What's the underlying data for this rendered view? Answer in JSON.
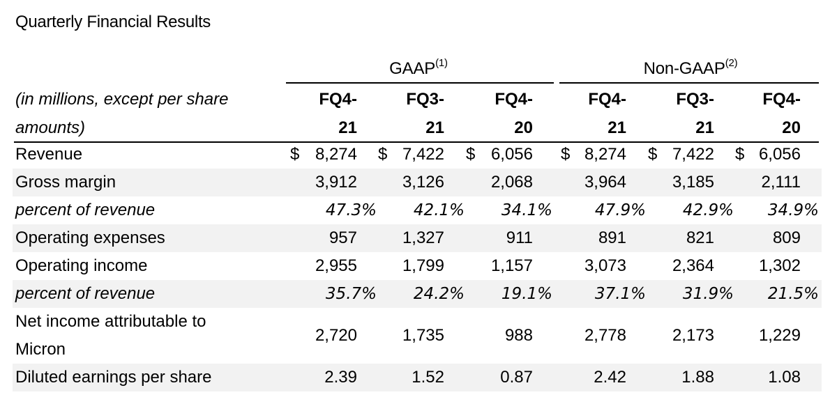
{
  "title": "Quarterly Financial Results",
  "groups": [
    {
      "name": "GAAP",
      "note": "(1)"
    },
    {
      "name": "Non-GAAP",
      "note": "(2)"
    }
  ],
  "header_label": [
    "(in millions, except per share",
    "amounts)"
  ],
  "columns": [
    {
      "l1": "FQ4-",
      "l2": "21"
    },
    {
      "l1": "FQ3-",
      "l2": "21"
    },
    {
      "l1": "FQ4-",
      "l2": "20"
    },
    {
      "l1": "FQ4-",
      "l2": "21"
    },
    {
      "l1": "FQ3-",
      "l2": "21"
    },
    {
      "l1": "FQ4-",
      "l2": "20"
    }
  ],
  "currency_symbol": "$",
  "rows": [
    {
      "label": "Revenue",
      "values": [
        "8,274",
        "7,422",
        "6,056",
        "8,274",
        "7,422",
        "6,056"
      ]
    },
    {
      "label": "Gross margin",
      "values": [
        "3,912",
        "3,126",
        "2,068",
        "3,964",
        "3,185",
        "2,111"
      ]
    },
    {
      "label": "percent of revenue",
      "values": [
        "47.3%",
        "42.1%",
        "34.1%",
        "47.9%",
        "42.9%",
        "34.9%"
      ]
    },
    {
      "label": "Operating expenses",
      "values": [
        "957",
        "1,327",
        "911",
        "891",
        "821",
        "809"
      ]
    },
    {
      "label": "Operating income",
      "values": [
        "2,955",
        "1,799",
        "1,157",
        "3,073",
        "2,364",
        "1,302"
      ]
    },
    {
      "label": "percent of revenue",
      "values": [
        "35.7%",
        "24.2%",
        "19.1%",
        "37.1%",
        "31.9%",
        "21.5%"
      ]
    },
    {
      "label_line1": "Net income attributable to",
      "label_line2": "Micron",
      "values": [
        "2,720",
        "1,735",
        "988",
        "2,778",
        "2,173",
        "1,229"
      ]
    },
    {
      "label": "Diluted earnings per share",
      "values": [
        "2.39",
        "1.52",
        "0.87",
        "2.42",
        "1.88",
        "1.08"
      ]
    }
  ]
}
